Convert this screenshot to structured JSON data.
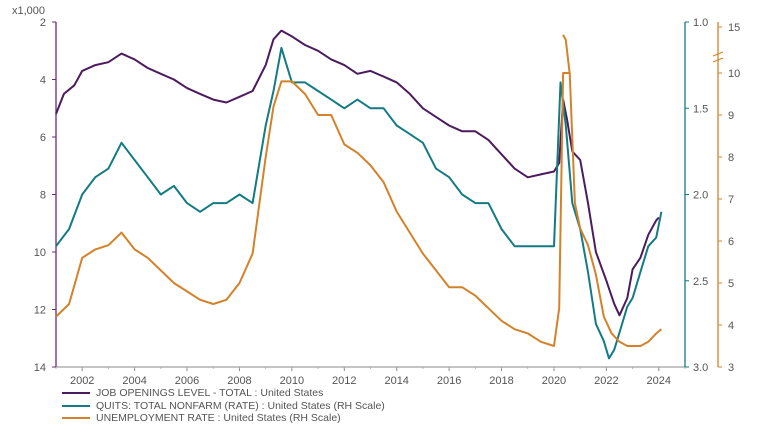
{
  "chart_data": {
    "type": "line",
    "multiplier_label": "x1,000",
    "x_ticks": [
      "2002",
      "2004",
      "2006",
      "2008",
      "2010",
      "2012",
      "2014",
      "2016",
      "2018",
      "2020",
      "2022",
      "2024"
    ],
    "left_axis": {
      "ylim": [
        2,
        14
      ],
      "inverted": true,
      "ticks": [
        "2",
        "4",
        "6",
        "8",
        "10",
        "12",
        "14"
      ]
    },
    "right_axis_quits": {
      "ylim": [
        1.0,
        3.0
      ],
      "inverted": true,
      "ticks": [
        "1.0",
        "1.5",
        "2.0",
        "2.5",
        "3.0"
      ]
    },
    "right_axis_unemployment": {
      "ylim": [
        3,
        10
      ],
      "ticks": [
        "3",
        "4",
        "5",
        "6",
        "7",
        "8",
        "9",
        "10"
      ],
      "broken_segment_ticks": [
        "15"
      ]
    },
    "series": [
      {
        "name": "JOB OPENINGS LEVEL - TOTAL : United States",
        "axis": "left",
        "color": "#4b1b5e",
        "points": [
          [
            2001.0,
            5.2
          ],
          [
            2001.3,
            4.5
          ],
          [
            2001.7,
            4.2
          ],
          [
            2002.0,
            3.7
          ],
          [
            2002.5,
            3.5
          ],
          [
            2003.0,
            3.4
          ],
          [
            2003.5,
            3.1
          ],
          [
            2004.0,
            3.3
          ],
          [
            2004.5,
            3.6
          ],
          [
            2005.0,
            3.8
          ],
          [
            2005.5,
            4.0
          ],
          [
            2006.0,
            4.3
          ],
          [
            2006.5,
            4.5
          ],
          [
            2007.0,
            4.7
          ],
          [
            2007.5,
            4.8
          ],
          [
            2008.0,
            4.6
          ],
          [
            2008.5,
            4.4
          ],
          [
            2009.0,
            3.5
          ],
          [
            2009.3,
            2.6
          ],
          [
            2009.6,
            2.3
          ],
          [
            2010.0,
            2.5
          ],
          [
            2010.5,
            2.8
          ],
          [
            2011.0,
            3.0
          ],
          [
            2011.5,
            3.3
          ],
          [
            2012.0,
            3.5
          ],
          [
            2012.5,
            3.8
          ],
          [
            2013.0,
            3.7
          ],
          [
            2013.5,
            3.9
          ],
          [
            2014.0,
            4.1
          ],
          [
            2014.5,
            4.5
          ],
          [
            2015.0,
            5.0
          ],
          [
            2015.5,
            5.3
          ],
          [
            2016.0,
            5.6
          ],
          [
            2016.5,
            5.8
          ],
          [
            2017.0,
            5.8
          ],
          [
            2017.5,
            6.1
          ],
          [
            2018.0,
            6.6
          ],
          [
            2018.5,
            7.1
          ],
          [
            2019.0,
            7.4
          ],
          [
            2019.5,
            7.3
          ],
          [
            2020.0,
            7.2
          ],
          [
            2020.2,
            6.9
          ],
          [
            2020.35,
            4.7
          ],
          [
            2020.5,
            5.4
          ],
          [
            2020.7,
            6.5
          ],
          [
            2021.0,
            6.8
          ],
          [
            2021.3,
            8.3
          ],
          [
            2021.6,
            10.0
          ],
          [
            2022.0,
            11.0
          ],
          [
            2022.3,
            11.8
          ],
          [
            2022.5,
            12.2
          ],
          [
            2022.8,
            11.6
          ],
          [
            2023.0,
            10.6
          ],
          [
            2023.3,
            10.2
          ],
          [
            2023.6,
            9.4
          ],
          [
            2023.9,
            8.9
          ],
          [
            2024.0,
            8.8
          ]
        ]
      },
      {
        "name": "QUITS: TOTAL NONFARM (RATE) : United States (RH Scale)",
        "axis": "right_quits",
        "color": "#137b83",
        "points": [
          [
            2001.0,
            2.3
          ],
          [
            2001.5,
            2.2
          ],
          [
            2002.0,
            2.0
          ],
          [
            2002.5,
            1.9
          ],
          [
            2003.0,
            1.85
          ],
          [
            2003.5,
            1.7
          ],
          [
            2004.0,
            1.8
          ],
          [
            2004.5,
            1.9
          ],
          [
            2005.0,
            2.0
          ],
          [
            2005.5,
            1.95
          ],
          [
            2006.0,
            2.05
          ],
          [
            2006.5,
            2.1
          ],
          [
            2007.0,
            2.05
          ],
          [
            2007.5,
            2.05
          ],
          [
            2008.0,
            2.0
          ],
          [
            2008.5,
            2.05
          ],
          [
            2009.0,
            1.6
          ],
          [
            2009.3,
            1.4
          ],
          [
            2009.6,
            1.15
          ],
          [
            2010.0,
            1.35
          ],
          [
            2010.5,
            1.35
          ],
          [
            2011.0,
            1.4
          ],
          [
            2011.5,
            1.45
          ],
          [
            2012.0,
            1.5
          ],
          [
            2012.5,
            1.45
          ],
          [
            2013.0,
            1.5
          ],
          [
            2013.5,
            1.5
          ],
          [
            2014.0,
            1.6
          ],
          [
            2014.5,
            1.65
          ],
          [
            2015.0,
            1.7
          ],
          [
            2015.5,
            1.85
          ],
          [
            2016.0,
            1.9
          ],
          [
            2016.5,
            2.0
          ],
          [
            2017.0,
            2.05
          ],
          [
            2017.5,
            2.05
          ],
          [
            2018.0,
            2.2
          ],
          [
            2018.5,
            2.3
          ],
          [
            2019.0,
            2.3
          ],
          [
            2019.5,
            2.3
          ],
          [
            2020.0,
            2.3
          ],
          [
            2020.25,
            1.35
          ],
          [
            2020.45,
            1.6
          ],
          [
            2020.7,
            2.05
          ],
          [
            2021.0,
            2.2
          ],
          [
            2021.3,
            2.45
          ],
          [
            2021.6,
            2.75
          ],
          [
            2021.9,
            2.85
          ],
          [
            2022.1,
            2.95
          ],
          [
            2022.3,
            2.9
          ],
          [
            2022.5,
            2.8
          ],
          [
            2022.8,
            2.65
          ],
          [
            2023.0,
            2.6
          ],
          [
            2023.3,
            2.45
          ],
          [
            2023.6,
            2.3
          ],
          [
            2023.9,
            2.25
          ],
          [
            2024.1,
            2.1
          ]
        ]
      },
      {
        "name": "UNEMPLOYMENT RATE : United States (RH Scale)",
        "axis": "right_unemployment",
        "color": "#d4822a",
        "points": [
          [
            2001.0,
            4.2
          ],
          [
            2001.5,
            4.5
          ],
          [
            2002.0,
            5.6
          ],
          [
            2002.5,
            5.8
          ],
          [
            2003.0,
            5.9
          ],
          [
            2003.5,
            6.2
          ],
          [
            2004.0,
            5.8
          ],
          [
            2004.5,
            5.6
          ],
          [
            2005.0,
            5.3
          ],
          [
            2005.5,
            5.0
          ],
          [
            2006.0,
            4.8
          ],
          [
            2006.5,
            4.6
          ],
          [
            2007.0,
            4.5
          ],
          [
            2007.5,
            4.6
          ],
          [
            2008.0,
            5.0
          ],
          [
            2008.5,
            5.7
          ],
          [
            2009.0,
            8.0
          ],
          [
            2009.3,
            9.2
          ],
          [
            2009.6,
            9.8
          ],
          [
            2010.0,
            9.8
          ],
          [
            2010.5,
            9.5
          ],
          [
            2011.0,
            9.0
          ],
          [
            2011.5,
            9.0
          ],
          [
            2012.0,
            8.3
          ],
          [
            2012.5,
            8.1
          ],
          [
            2013.0,
            7.8
          ],
          [
            2013.5,
            7.4
          ],
          [
            2014.0,
            6.7
          ],
          [
            2014.5,
            6.2
          ],
          [
            2015.0,
            5.7
          ],
          [
            2015.5,
            5.3
          ],
          [
            2016.0,
            4.9
          ],
          [
            2016.5,
            4.9
          ],
          [
            2017.0,
            4.7
          ],
          [
            2017.5,
            4.4
          ],
          [
            2018.0,
            4.1
          ],
          [
            2018.5,
            3.9
          ],
          [
            2019.0,
            3.8
          ],
          [
            2019.5,
            3.6
          ],
          [
            2020.0,
            3.5
          ],
          [
            2020.2,
            4.4
          ],
          [
            2020.35,
            10.0
          ],
          [
            2020.6,
            10.0
          ],
          [
            2020.8,
            6.9
          ],
          [
            2021.0,
            6.3
          ],
          [
            2021.3,
            5.9
          ],
          [
            2021.6,
            5.2
          ],
          [
            2021.9,
            4.2
          ],
          [
            2022.2,
            3.8
          ],
          [
            2022.5,
            3.6
          ],
          [
            2022.8,
            3.5
          ],
          [
            2023.0,
            3.5
          ],
          [
            2023.3,
            3.5
          ],
          [
            2023.6,
            3.6
          ],
          [
            2023.9,
            3.8
          ],
          [
            2024.1,
            3.9
          ]
        ],
        "broken_segment_points": [
          [
            2020.35,
            14.7
          ],
          [
            2020.45,
            14.5
          ],
          [
            2020.6,
            13.2
          ]
        ]
      }
    ]
  }
}
